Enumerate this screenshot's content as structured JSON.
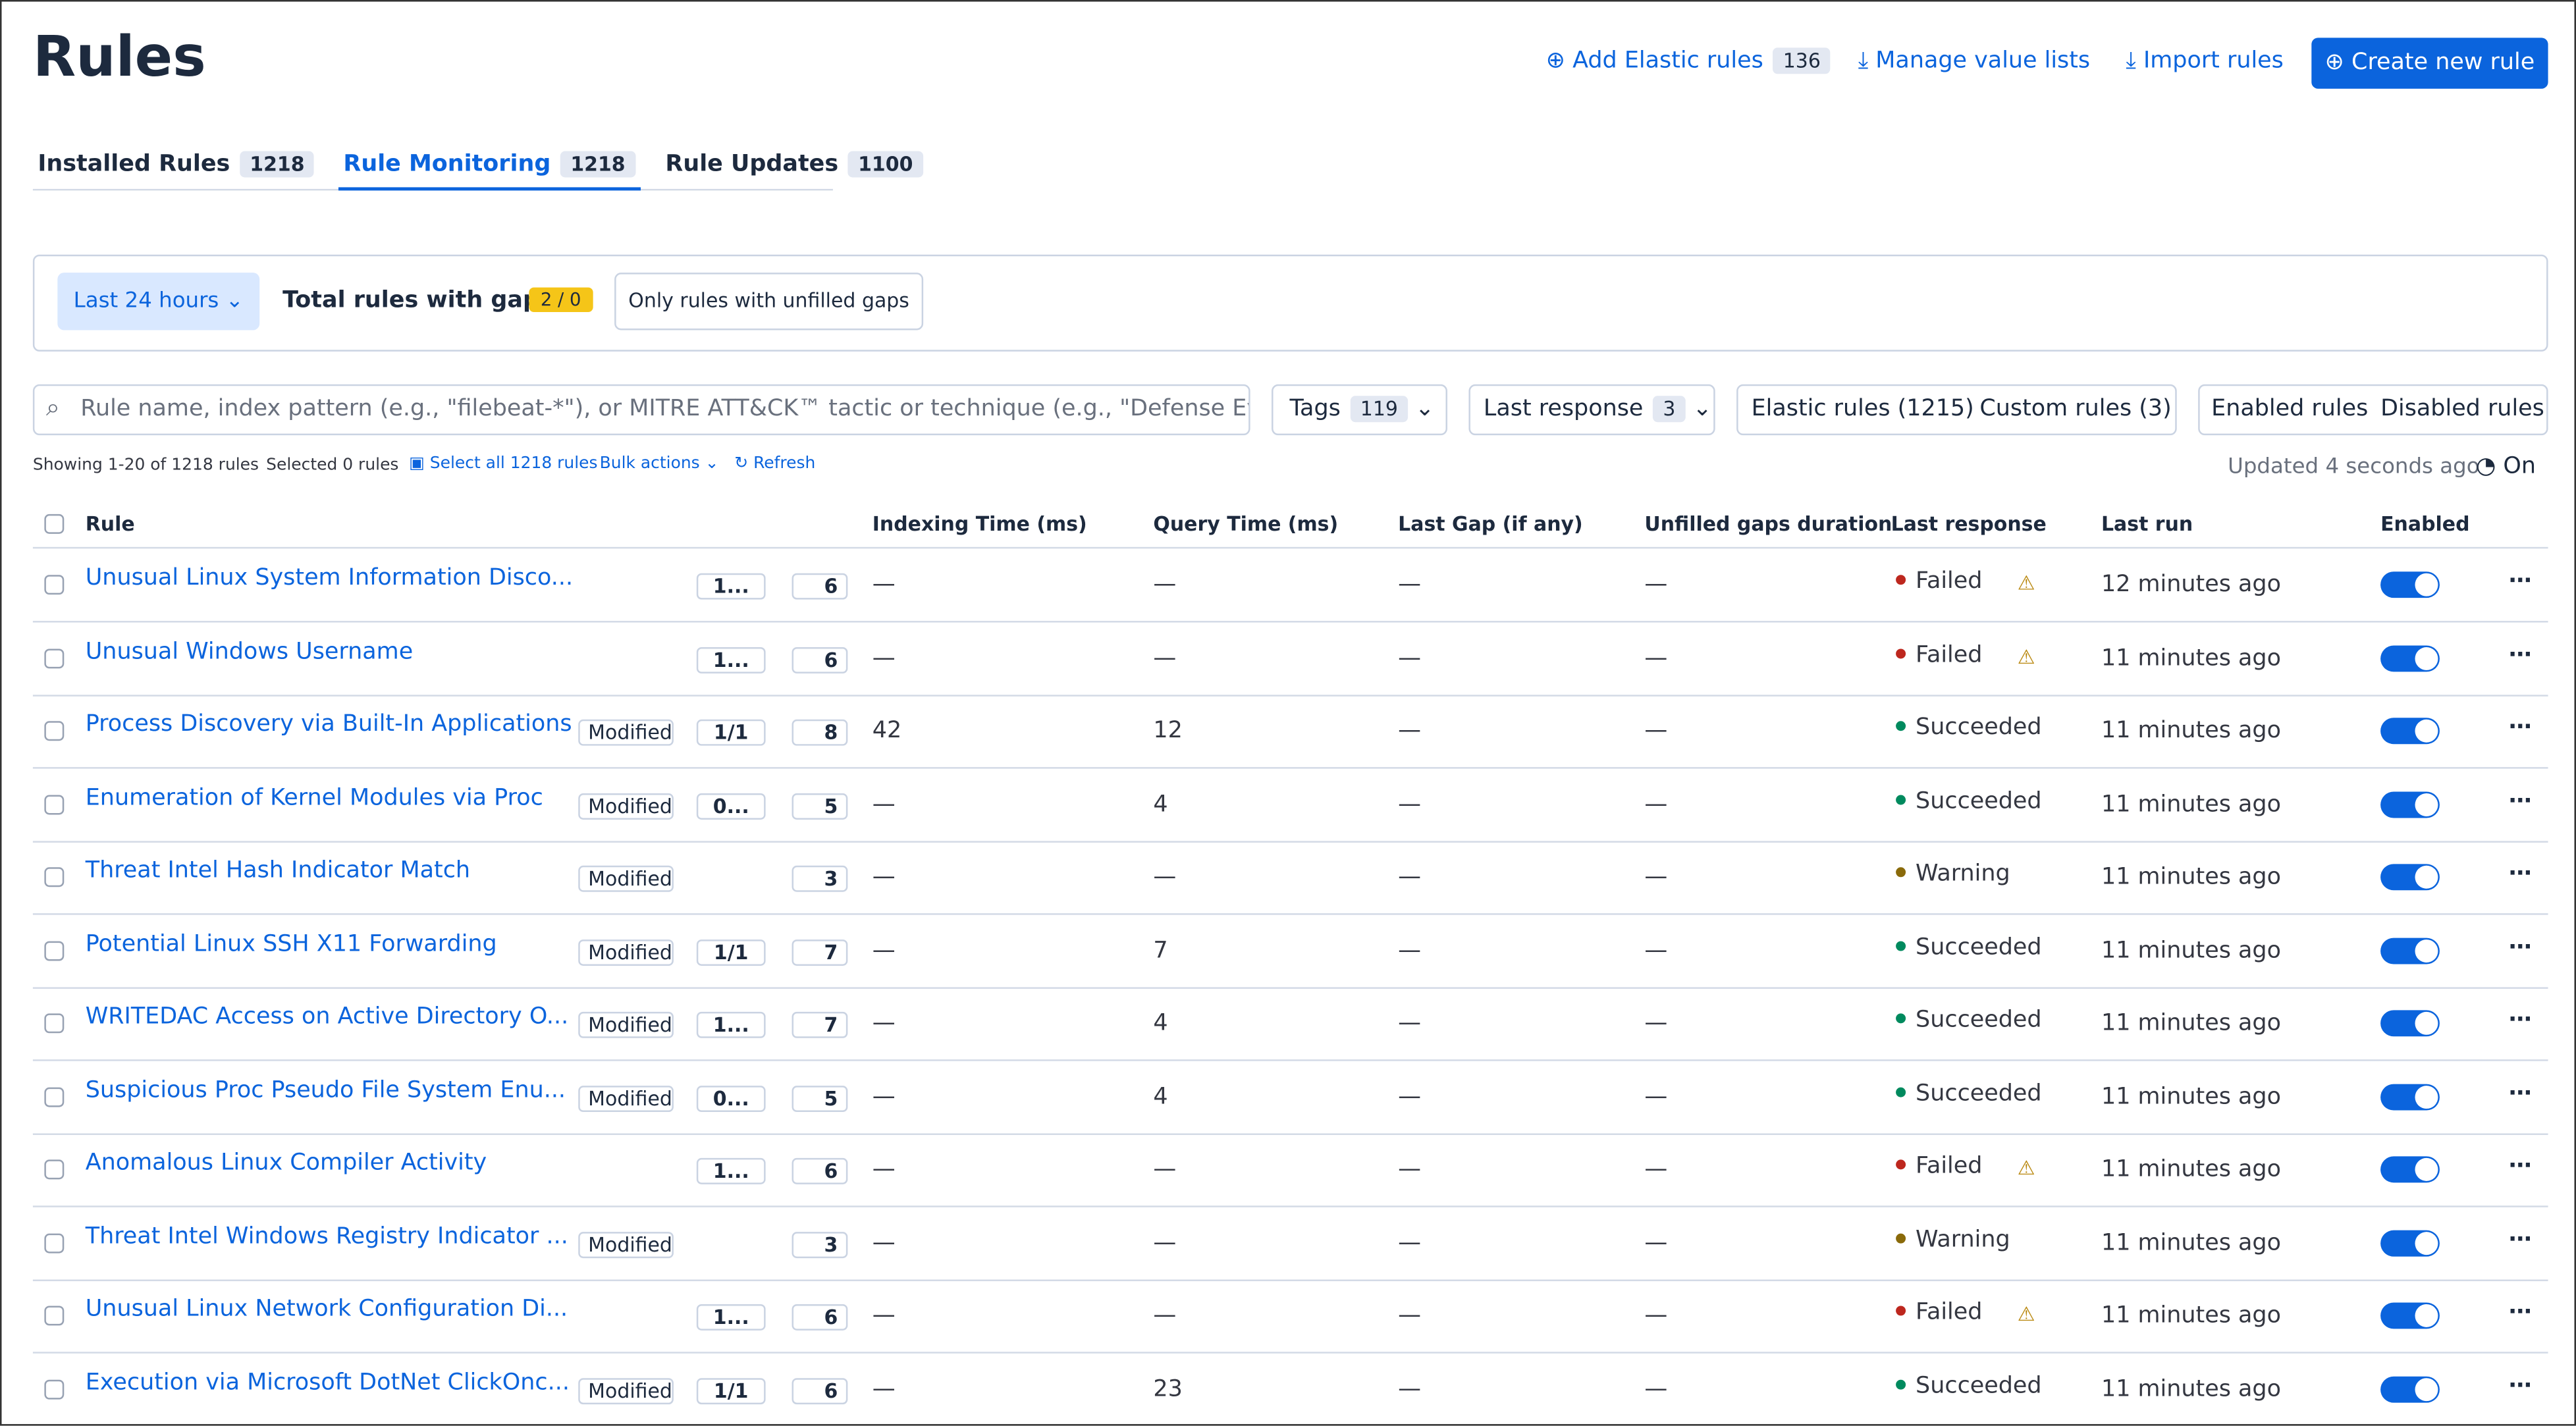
{
  "header": {
    "title": "Rules",
    "add": {
      "label": "Add Elastic rules",
      "count": 136
    },
    "manage": "Manage value lists",
    "import": "Import rules",
    "create": "Create new rule"
  },
  "tabs": [
    {
      "label": "Installed Rules",
      "count": 1218,
      "active": false
    },
    {
      "label": "Rule Monitoring",
      "count": 1218,
      "active": true
    },
    {
      "label": "Rule Updates",
      "count": 1100,
      "active": false
    }
  ],
  "gaps": {
    "range": "Last 24 hours",
    "label": "Total rules with gaps:",
    "badge": "2 / 0",
    "toggle": "Only rules with unfilled gaps"
  },
  "search": {
    "placeholder": "Rule name, index pattern (e.g., \"filebeat-*\"), or MITRE ATT&CK™ tactic or technique (e.g., \"Defense Evasion"
  },
  "filters": {
    "tags": {
      "label": "Tags",
      "count": 119
    },
    "response": {
      "label": "Last response",
      "count": 3
    },
    "source": [
      "Elastic rules (1215)",
      "Custom rules (3)"
    ],
    "enabled": [
      "Enabled rules",
      "Disabled rules"
    ]
  },
  "info": {
    "showing": "Showing 1-20 of 1218 rules",
    "selected": "Selected 0 rules",
    "select_all": "Select all 1218 rules",
    "bulk": "Bulk actions",
    "refresh": "Refresh",
    "updated": "Updated 4 seconds ago",
    "auto": "On"
  },
  "table": {
    "columns": [
      "Rule",
      "Indexing Time (ms)",
      "Query Time (ms)",
      "Last Gap (if any)",
      "Unfilled gaps duration",
      "Last response",
      "Last run",
      "Enabled"
    ],
    "rows": [
      {
        "name": "Unusual Linux System Information Disco...",
        "integrations": "1...",
        "tags": 6,
        "indexing": "—",
        "query": "—",
        "gap": "—",
        "unfilled": "—",
        "response": "Failed",
        "warning": true,
        "last_run": "12 minutes ago",
        "enabled": true
      },
      {
        "name": "Unusual Windows Username",
        "integrations": "1...",
        "tags": 6,
        "indexing": "—",
        "query": "—",
        "gap": "—",
        "unfilled": "—",
        "response": "Failed",
        "warning": true,
        "last_run": "11 minutes ago",
        "enabled": true
      },
      {
        "name": "Process Discovery via Built-In Applications",
        "modified": "Modified",
        "integrations": "1/1",
        "tags": 8,
        "indexing": 42,
        "query": 12,
        "gap": "—",
        "unfilled": "—",
        "response": "Succeeded",
        "last_run": "11 minutes ago",
        "enabled": true
      },
      {
        "name": "Enumeration of Kernel Modules via Proc",
        "modified": "Modified",
        "integrations": "0...",
        "tags": 5,
        "indexing": "—",
        "query": 4,
        "gap": "—",
        "unfilled": "—",
        "response": "Succeeded",
        "last_run": "11 minutes ago",
        "enabled": true
      },
      {
        "name": "Threat Intel Hash Indicator Match",
        "modified": "Modified",
        "tags": 3,
        "indexing": "—",
        "query": "—",
        "gap": "—",
        "unfilled": "—",
        "response": "Warning",
        "last_run": "11 minutes ago",
        "enabled": true
      },
      {
        "name": "Potential Linux SSH X11 Forwarding",
        "modified": "Modified",
        "integrations": "1/1",
        "tags": 7,
        "indexing": "—",
        "query": 7,
        "gap": "—",
        "unfilled": "—",
        "response": "Succeeded",
        "last_run": "11 minutes ago",
        "enabled": true
      },
      {
        "name": "WRITEDAC Access on Active Directory O...",
        "modified": "Modified",
        "integrations": "1...",
        "tags": 7,
        "indexing": "—",
        "query": 4,
        "gap": "—",
        "unfilled": "—",
        "response": "Succeeded",
        "last_run": "11 minutes ago",
        "enabled": true
      },
      {
        "name": "Suspicious Proc Pseudo File System Enu...",
        "modified": "Modified",
        "integrations": "0...",
        "tags": 5,
        "indexing": "—",
        "query": 4,
        "gap": "—",
        "unfilled": "—",
        "response": "Succeeded",
        "last_run": "11 minutes ago",
        "enabled": true
      },
      {
        "name": "Anomalous Linux Compiler Activity",
        "integrations": "1...",
        "tags": 6,
        "indexing": "—",
        "query": "—",
        "gap": "—",
        "unfilled": "—",
        "response": "Failed",
        "warning": true,
        "last_run": "11 minutes ago",
        "enabled": true
      },
      {
        "name": "Threat Intel Windows Registry Indicator ...",
        "modified": "Modified",
        "tags": 3,
        "indexing": "—",
        "query": "—",
        "gap": "—",
        "unfilled": "—",
        "response": "Warning",
        "last_run": "11 minutes ago",
        "enabled": true
      },
      {
        "name": "Unusual Linux Network Configuration Di...",
        "integrations": "1...",
        "tags": 6,
        "indexing": "—",
        "query": "—",
        "gap": "—",
        "unfilled": "—",
        "response": "Failed",
        "warning": true,
        "last_run": "11 minutes ago",
        "enabled": true
      },
      {
        "name": "Execution via Microsoft DotNet ClickOnc...",
        "modified": "Modified",
        "integrations": "1/1",
        "tags": 6,
        "indexing": "—",
        "query": 23,
        "gap": "—",
        "unfilled": "—",
        "response": "Succeeded",
        "last_run": "11 minutes ago",
        "enabled": true
      }
    ]
  }
}
